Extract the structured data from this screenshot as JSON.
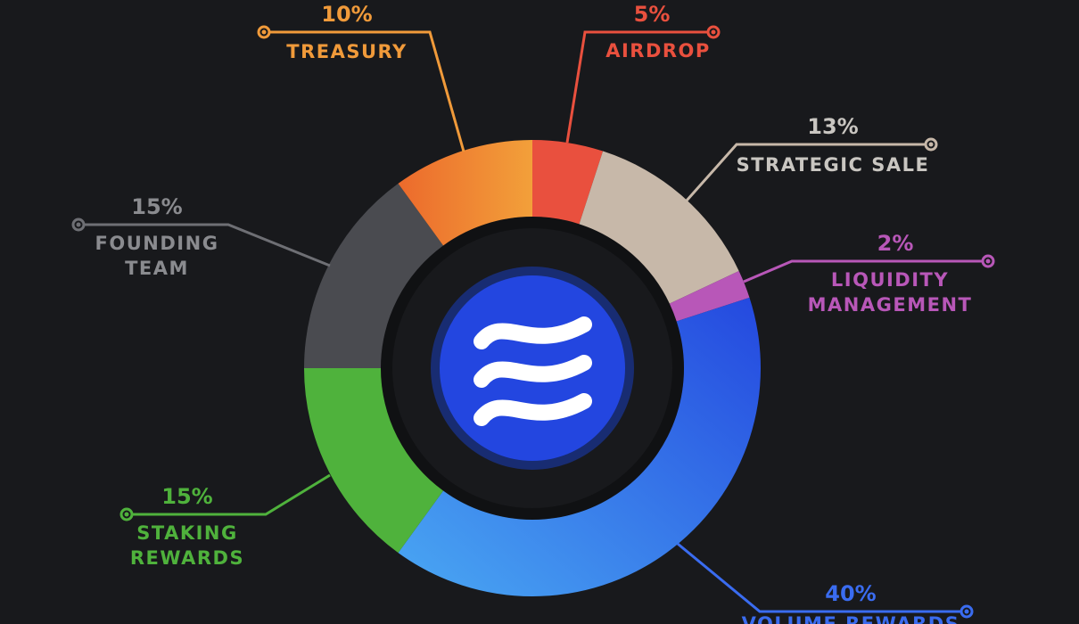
{
  "chart_data": {
    "type": "pie",
    "title": "",
    "slices": [
      {
        "label": "AIRDROP",
        "percent_label": "5%",
        "value": 5,
        "color": "#e9503e"
      },
      {
        "label": "STRATEGIC SALE",
        "percent_label": "13%",
        "value": 13,
        "color": "#c7b8a9"
      },
      {
        "label": "LIQUIDITY MANAGEMENT",
        "percent_label": "2%",
        "value": 2,
        "color": "#b857b8"
      },
      {
        "label": "VOLUME REWARDS",
        "percent_label": "40%",
        "value": 40,
        "color": "#2c5ce6"
      },
      {
        "label": "STAKING REWARDS",
        "percent_label": "15%",
        "value": 15,
        "color": "#4fb23c"
      },
      {
        "label": "FOUNDING TEAM",
        "percent_label": "15%",
        "value": 15,
        "color": "#4a4b50"
      },
      {
        "label": "TREASURY",
        "percent_label": "10%",
        "value": 10,
        "color": "#ee8a33"
      }
    ]
  },
  "center_logo": {
    "icon": "wave-logo-icon",
    "color": "#2346e0"
  }
}
